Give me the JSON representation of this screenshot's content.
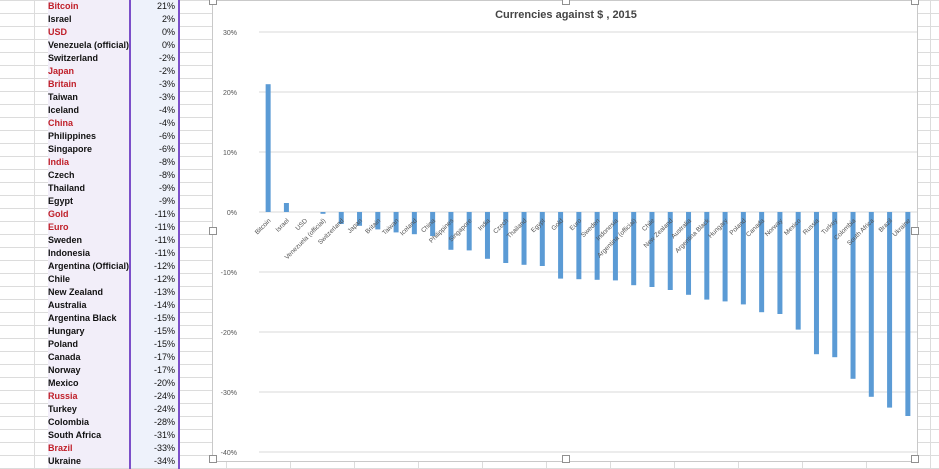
{
  "table": {
    "rows": [
      {
        "name": "Bitcoin",
        "value": "21%",
        "red": true
      },
      {
        "name": "Israel",
        "value": "2%",
        "red": false
      },
      {
        "name": "USD",
        "value": "0%",
        "red": true
      },
      {
        "name": "Venezuela (official)",
        "value": "0%",
        "red": false
      },
      {
        "name": "Switzerland",
        "value": "-2%",
        "red": false
      },
      {
        "name": "Japan",
        "value": "-2%",
        "red": true
      },
      {
        "name": "Britain",
        "value": "-3%",
        "red": true
      },
      {
        "name": "Taiwan",
        "value": "-3%",
        "red": false
      },
      {
        "name": "Iceland",
        "value": "-4%",
        "red": false
      },
      {
        "name": "China",
        "value": "-4%",
        "red": true
      },
      {
        "name": "Philippines",
        "value": "-6%",
        "red": false
      },
      {
        "name": "Singapore",
        "value": "-6%",
        "red": false
      },
      {
        "name": "India",
        "value": "-8%",
        "red": true
      },
      {
        "name": "Czech",
        "value": "-8%",
        "red": false
      },
      {
        "name": "Thailand",
        "value": "-9%",
        "red": false
      },
      {
        "name": "Egypt",
        "value": "-9%",
        "red": false
      },
      {
        "name": "Gold",
        "value": "-11%",
        "red": true
      },
      {
        "name": "Euro",
        "value": "-11%",
        "red": true
      },
      {
        "name": "Sweden",
        "value": "-11%",
        "red": false
      },
      {
        "name": "Indonesia",
        "value": "-11%",
        "red": false
      },
      {
        "name": "Argentina (Official)",
        "value": "-12%",
        "red": false
      },
      {
        "name": "Chile",
        "value": "-12%",
        "red": false
      },
      {
        "name": "New Zealand",
        "value": "-13%",
        "red": false
      },
      {
        "name": "Australia",
        "value": "-14%",
        "red": false
      },
      {
        "name": "Argentina Black",
        "value": "-15%",
        "red": false
      },
      {
        "name": "Hungary",
        "value": "-15%",
        "red": false
      },
      {
        "name": "Poland",
        "value": "-15%",
        "red": false
      },
      {
        "name": "Canada",
        "value": "-17%",
        "red": false
      },
      {
        "name": "Norway",
        "value": "-17%",
        "red": false
      },
      {
        "name": "Mexico",
        "value": "-20%",
        "red": false
      },
      {
        "name": "Russia",
        "value": "-24%",
        "red": true
      },
      {
        "name": "Turkey",
        "value": "-24%",
        "red": false
      },
      {
        "name": "Colombia",
        "value": "-28%",
        "red": false
      },
      {
        "name": "South Africa",
        "value": "-31%",
        "red": false
      },
      {
        "name": "Brazil",
        "value": "-33%",
        "red": true
      },
      {
        "name": "Ukraine",
        "value": "-34%",
        "red": false
      }
    ]
  },
  "colors": {
    "bar": "#5b9bd5",
    "red_text": "#c0202a",
    "selection": "#7b4fc9"
  },
  "chart_data": {
    "type": "bar",
    "title": "Currencies against $ , 2015",
    "xlabel": "",
    "ylabel": "",
    "ylim": [
      -40,
      30
    ],
    "yticks": [
      30,
      20,
      10,
      0,
      -10,
      -20,
      -30,
      -40
    ],
    "ytick_labels": [
      "30%",
      "20%",
      "10%",
      "0%",
      "-10%",
      "-20%",
      "-30%",
      "-40%"
    ],
    "grid": true,
    "categories": [
      "Bitcoin",
      "Israel",
      "USD",
      "Venezuela (official)",
      "Switzerland",
      "Japan",
      "Britain",
      "Taiwan",
      "Iceland",
      "China",
      "Philippines",
      "Singapore",
      "India",
      "Czech",
      "Thailand",
      "Egypt",
      "Gold",
      "Euro",
      "Sweden",
      "Indonesia",
      "Argentina (official)",
      "Chile",
      "New Zealand",
      "Australia",
      "Argentina Black",
      "Hungary",
      "Poland",
      "Canada",
      "Norway",
      "Mexico",
      "Russia",
      "Turkey",
      "Colombia",
      "South Africa",
      "Brazil",
      "Ukraine"
    ],
    "values": [
      21.3,
      1.5,
      0,
      -0.3,
      -2.0,
      -2.3,
      -2.9,
      -3.4,
      -3.7,
      -4.0,
      -6.3,
      -6.4,
      -7.8,
      -8.5,
      -8.8,
      -9.0,
      -11.1,
      -11.2,
      -11.3,
      -11.4,
      -12.2,
      -12.5,
      -13.0,
      -13.8,
      -14.6,
      -14.9,
      -15.4,
      -16.7,
      -17.0,
      -19.6,
      -23.7,
      -24.2,
      -27.8,
      -30.8,
      -32.6,
      -34.0
    ]
  }
}
